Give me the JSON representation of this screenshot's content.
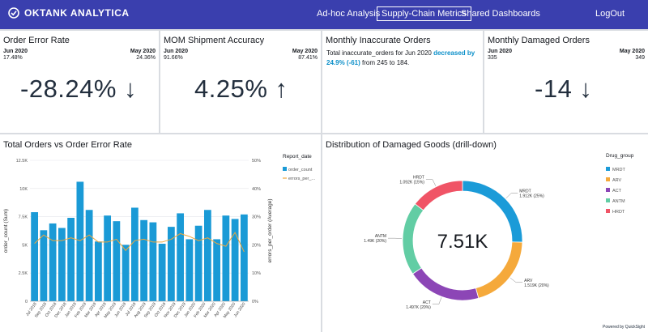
{
  "nav": {
    "brand": "OKTANK ANALYTICA",
    "links": [
      "Ad-hoc Analysis",
      "Supply-Chain Metrics",
      "Shared Dashboards"
    ],
    "active": "Supply-Chain Metrics",
    "logout": "LogOut"
  },
  "kpis": {
    "error_rate": {
      "title": "Order Error Rate",
      "left_head": "Jun 2020",
      "left_val": "17.48%",
      "right_head": "May 2020",
      "right_val": "24.36%",
      "big": "-28.24% ↓"
    },
    "shipment_accuracy": {
      "title": "MOM Shipment Accuracy",
      "left_head": "Jun 2020",
      "left_val": "91.66%",
      "right_head": "May 2020",
      "right_val": "87.41%",
      "big": "4.25% ↑"
    },
    "inaccurate_orders": {
      "title": "Monthly Inaccurate Orders",
      "text_before": "Total inaccurate_orders for Jun 2020 ",
      "text_hl": "decreased by 24.9% (-61)",
      "text_after": " from 245 to 184."
    },
    "damaged_orders": {
      "title": "Monthly Damaged Orders",
      "left_head": "Jun 2020",
      "left_val": "335",
      "right_head": "May 2020",
      "right_val": "349",
      "big": "-14 ↓"
    }
  },
  "colors": {
    "nav_bg": "#3a3fae",
    "bar": "#1a9ad6",
    "line": "#f0a73b",
    "highlight": "#0b8fc9"
  },
  "combo": {
    "title": "Total Orders vs Order Error Rate",
    "legend_title": "Report_date",
    "legend_items": [
      "order_count",
      "errors_per_..."
    ],
    "footer": "Powered by QuickSight"
  },
  "donut": {
    "title": "Distribution of Damaged Goods (drill-down)",
    "center": "7.51K",
    "legend_title": "Drug_group"
  },
  "chart_data": [
    {
      "type": "bar",
      "title": "Total Orders vs Order Error Rate",
      "categories": [
        "Jul 2018",
        "Aug 2018",
        "Sep 2018",
        "Oct 2018",
        "Nov 2018",
        "Dec 2018",
        "Jan 2019",
        "Feb 2019",
        "Mar 2019",
        "Apr 2019",
        "May 2019",
        "Jun 2019",
        "Jul 2019",
        "Aug 2019",
        "Sep 2019",
        "Oct 2019",
        "Nov 2019",
        "Dec 2019",
        "Jan 2020",
        "Feb 2020",
        "Mar 2020",
        "Apr 2020",
        "May 2020",
        "Jun 2020"
      ],
      "x_tick_labels": [
        "Jul 2018",
        "Sep 2018",
        "Oct 2018",
        "Dec 2018",
        "Jan 2019",
        "Feb 2019",
        "Mar 2019",
        "Apr 2019",
        "May 2019",
        "Jun 2019",
        "Jul 2019",
        "Aug 2019",
        "Sep 2019",
        "Oct 2019",
        "Nov 2019",
        "Dec 2019",
        "Jan 2020",
        "Feb 2020",
        "Mar 2020",
        "Apr 2020",
        "May 2020",
        "Jun 2020"
      ],
      "series": [
        {
          "name": "order_count",
          "axis": "left",
          "kind": "bar",
          "values": [
            7900,
            6300,
            6900,
            6500,
            7400,
            10600,
            8100,
            5300,
            7600,
            7100,
            5000,
            8300,
            7200,
            7000,
            5100,
            6600,
            7800,
            5500,
            6700,
            8100,
            5500,
            7600,
            7300,
            7700
          ]
        },
        {
          "name": "errors_per_order",
          "axis": "right",
          "kind": "line",
          "values": [
            20.5,
            23.5,
            21.5,
            21.5,
            22.5,
            21.5,
            23.5,
            21.0,
            21.0,
            22.0,
            18.0,
            21.5,
            22.0,
            21.0,
            21.0,
            22.0,
            24.0,
            23.0,
            21.5,
            22.5,
            20.5,
            19.5,
            24.4,
            17.5
          ]
        }
      ],
      "ylabel": "order_count (Sum)",
      "y_ticks": [
        "0",
        "2.5K",
        "5K",
        "7.5K",
        "10K",
        "12.5K"
      ],
      "ylim": [
        0,
        12500
      ],
      "y2label": "errors_per_order (Average)",
      "y2_ticks": [
        "0%",
        "10%",
        "20%",
        "30%",
        "40%",
        "50%"
      ],
      "y2lim": [
        0,
        50
      ]
    },
    {
      "type": "pie",
      "title": "Distribution of Damaged Goods (drill-down)",
      "legend_title": "Drug_group",
      "slices": [
        {
          "name": "MRDT",
          "value": 1912,
          "label": "1.912K (25%)",
          "color": "#1b9bd8"
        },
        {
          "name": "ARV",
          "value": 1519,
          "label": "1.519K (20%)",
          "color": "#f5a93b"
        },
        {
          "name": "ACT",
          "value": 1497,
          "label": "1.497K (20%)",
          "color": "#8c46b6"
        },
        {
          "name": "ANTM",
          "value": 1490,
          "label": "1.49K (20%)",
          "color": "#62cda4"
        },
        {
          "name": "HRDT",
          "value": 1092,
          "label": "1.092K (15%)",
          "color": "#f05466"
        }
      ],
      "total_label": "7.51K"
    }
  ]
}
